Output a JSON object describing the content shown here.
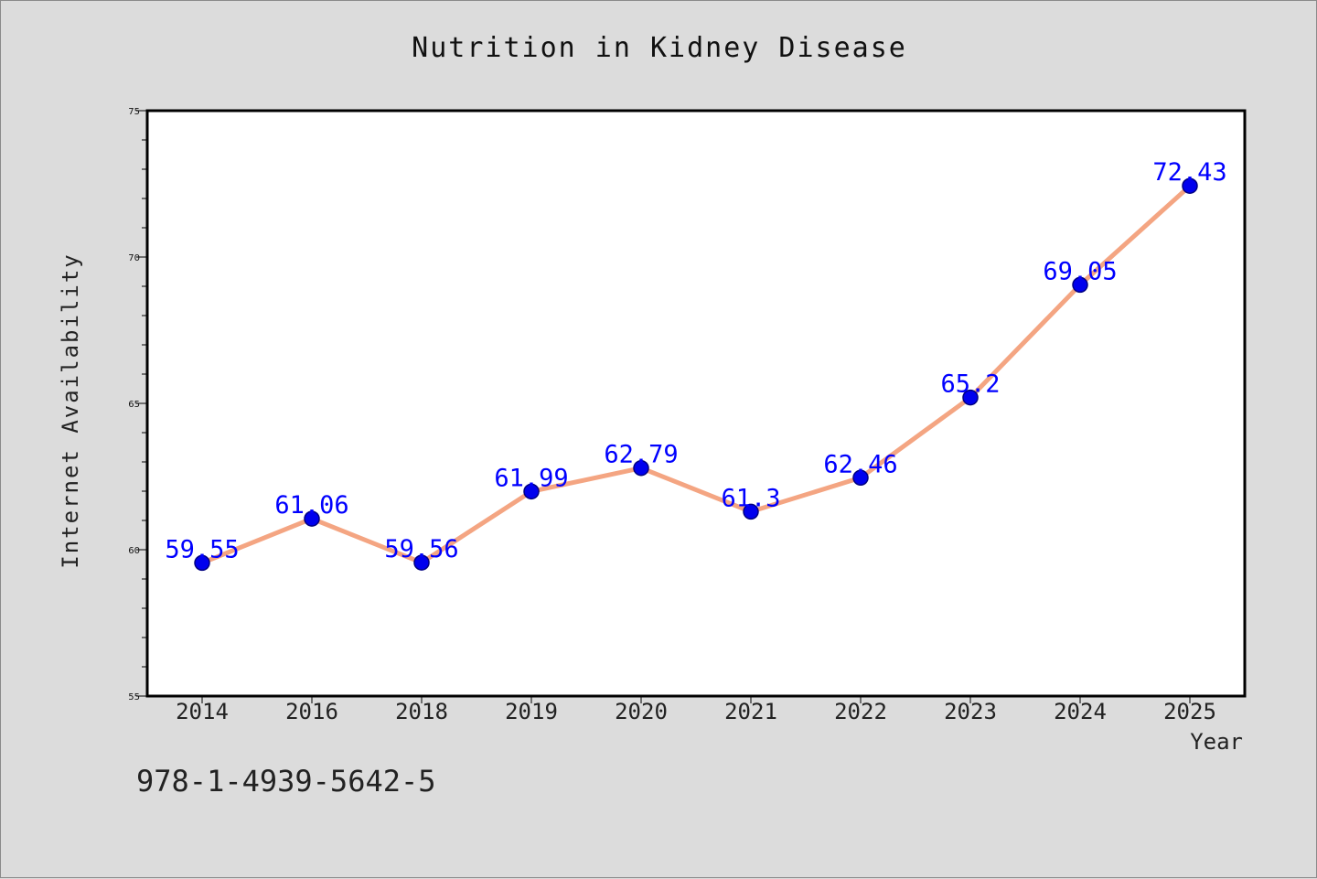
{
  "chart_data": {
    "type": "line",
    "title": "Nutrition in Kidney Disease",
    "xlabel": "Year",
    "ylabel": "Internet Availability",
    "categories": [
      "2014",
      "2016",
      "2018",
      "2019",
      "2020",
      "2021",
      "2022",
      "2023",
      "2024",
      "2025"
    ],
    "values": [
      59.55,
      61.06,
      59.56,
      61.99,
      62.79,
      61.3,
      62.46,
      65.2,
      69.05,
      72.43
    ],
    "data_labels": [
      "59.55",
      "61.06",
      "59.56",
      "61.99",
      "62.79",
      "61.3",
      "62.46",
      "65.2",
      "69.05",
      "72.43"
    ],
    "ylim": [
      55,
      75
    ],
    "yticks": [
      55,
      60,
      65,
      70,
      75
    ],
    "grid": false,
    "legend": "none",
    "colors": {
      "line": "#f4a582",
      "marker": "#0000ee",
      "marker_edge": "#000080",
      "data_label": "#0000ff",
      "background": "#dcdcdc",
      "plot_background": "#ffffff"
    }
  },
  "annotation": "978-1-4939-5642-5"
}
